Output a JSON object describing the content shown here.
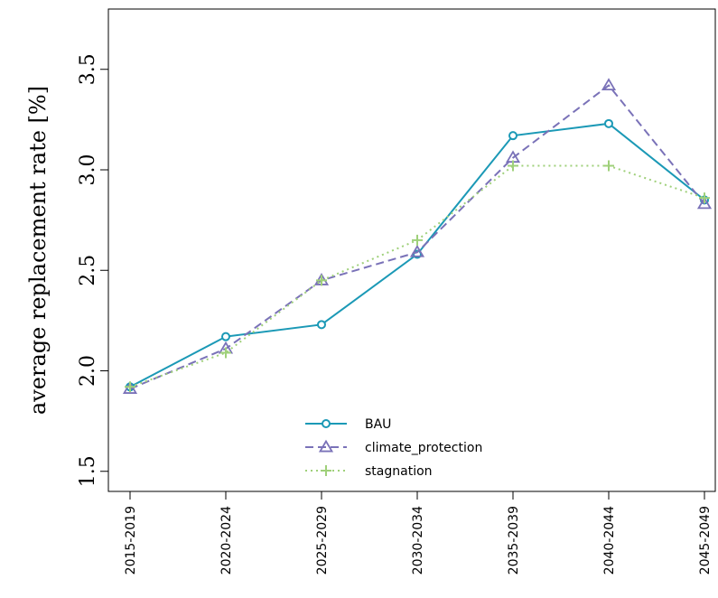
{
  "chart_data": {
    "type": "line",
    "ylabel": "average replacement rate [%]",
    "xlabel": "",
    "categories": [
      "2015-2019",
      "2020-2024",
      "2025-2029",
      "2030-2034",
      "2035-2039",
      "2040-2044",
      "2045-2049"
    ],
    "yticks": [
      "1.5",
      "2.0",
      "2.5",
      "3.0",
      "3.5"
    ],
    "ylim": [
      1.4,
      3.8
    ],
    "grid": false,
    "legend": "bottom-center",
    "series": [
      {
        "name": "BAU",
        "values": [
          1.92,
          2.17,
          2.23,
          2.58,
          3.17,
          3.23,
          2.85
        ],
        "color": "#1b99b6",
        "dash": "solid",
        "marker": "circle"
      },
      {
        "name": "climate_protection",
        "values": [
          1.91,
          2.11,
          2.45,
          2.59,
          3.06,
          3.42,
          2.83
        ],
        "color": "#7a72b8",
        "dash": "dashed",
        "marker": "triangle"
      },
      {
        "name": "stagnation",
        "values": [
          1.92,
          2.09,
          2.45,
          2.65,
          3.02,
          3.02,
          2.86
        ],
        "color": "#9fd07a",
        "dash": "dotted",
        "marker": "plus"
      }
    ]
  }
}
